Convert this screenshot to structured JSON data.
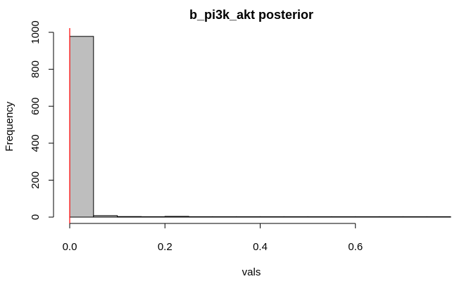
{
  "chart_data": {
    "type": "bar",
    "title": "b_pi3k_akt posterior",
    "xlabel": "vals",
    "ylabel": "Frequency",
    "bin_width": 0.05,
    "bin_starts": [
      0.0,
      0.05,
      0.1,
      0.15,
      0.2,
      0.25,
      0.3,
      0.35,
      0.4,
      0.45,
      0.5,
      0.55,
      0.6,
      0.65,
      0.7,
      0.75
    ],
    "values": [
      978,
      8,
      3,
      1,
      4,
      1,
      0,
      2,
      0,
      1,
      0,
      0,
      0,
      0,
      0,
      1
    ],
    "x_ticks": [
      0.0,
      0.2,
      0.4,
      0.6
    ],
    "x_tick_labels": [
      "0.0",
      "0.2",
      "0.4",
      "0.6"
    ],
    "y_ticks": [
      0,
      200,
      400,
      600,
      800,
      1000
    ],
    "y_tick_labels": [
      "0",
      "200",
      "400",
      "600",
      "800",
      "1000"
    ],
    "xlim": [
      0.0,
      0.8
    ],
    "ylim": [
      0,
      1000
    ],
    "vline_x": 0.0,
    "colors": {
      "bar_fill": "#bebebe",
      "bar_stroke": "#000000",
      "vline": "#ff0000"
    },
    "grid": false,
    "legend": "none"
  }
}
